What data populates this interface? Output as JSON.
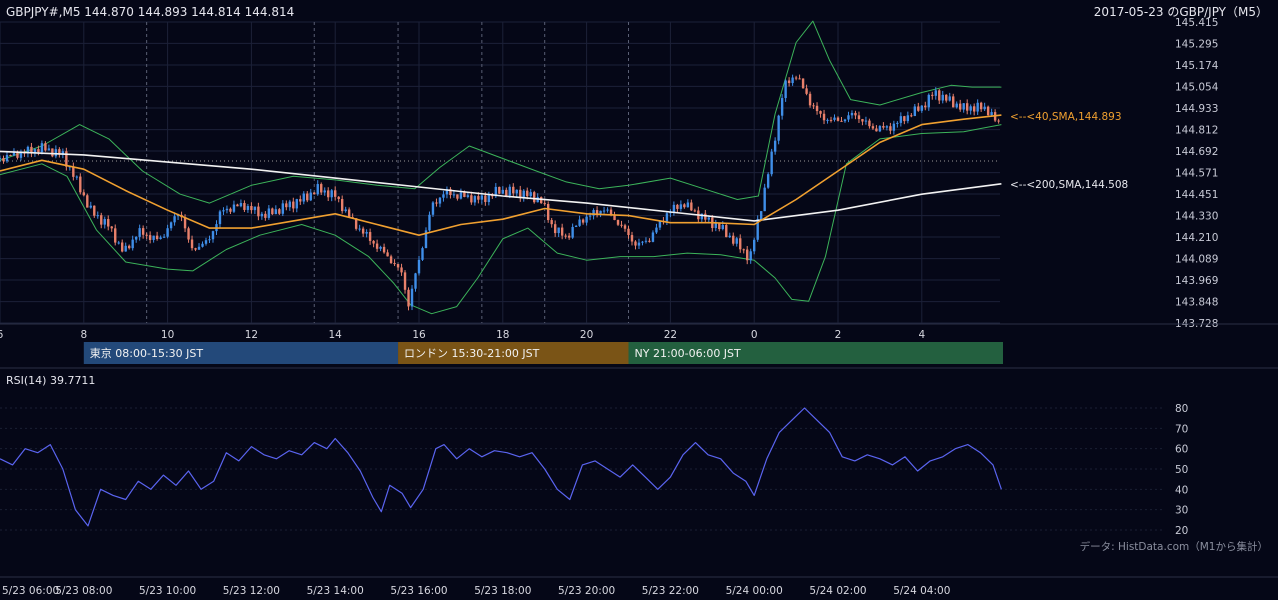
{
  "header": {
    "symbol_line": "GBPJPY#,M5 144.870 144.893 144.814 144.814",
    "chart_title": "2017-05-23 のGBP/JPY（M5）"
  },
  "price_axis": {
    "ticks": [
      "145.415",
      "145.295",
      "145.174",
      "145.054",
      "144.933",
      "144.812",
      "144.692",
      "144.571",
      "144.451",
      "144.330",
      "144.210",
      "144.089",
      "143.969",
      "143.848",
      "143.728"
    ]
  },
  "hour_axis": {
    "ticks": [
      {
        "label": "6",
        "h": 6
      },
      {
        "label": "8",
        "h": 8
      },
      {
        "label": "10",
        "h": 10
      },
      {
        "label": "12",
        "h": 12
      },
      {
        "label": "14",
        "h": 14
      },
      {
        "label": "16",
        "h": 16
      },
      {
        "label": "18",
        "h": 18
      },
      {
        "label": "20",
        "h": 20
      },
      {
        "label": "22",
        "h": 22
      },
      {
        "label": "0",
        "h": 24
      },
      {
        "label": "2",
        "h": 26
      },
      {
        "label": "4",
        "h": 28
      }
    ]
  },
  "sessions": [
    {
      "label": "東京 08:00-15:30 JST",
      "start_h": 8,
      "end_h": 15.5,
      "color": "#23497a"
    },
    {
      "label": "ロンドン 15:30-21:00 JST",
      "start_h": 15.5,
      "end_h": 21,
      "color": "#7a5416"
    },
    {
      "label": "NY 21:00-06:00 JST",
      "start_h": 21,
      "end_h": 30,
      "color": "#23603f"
    }
  ],
  "annotations": {
    "sma40": "<--<40,SMA,144.893",
    "sma200": "<--<200,SMA,144.508"
  },
  "rsi": {
    "label": "RSI(14) 39.7711",
    "ticks": [
      "80",
      "70",
      "60",
      "50",
      "40",
      "30",
      "20"
    ]
  },
  "source_note": "データ: HistData.com（M1から集計）",
  "date_axis": {
    "ticks": [
      {
        "label": "5/23 06:00",
        "h": 6
      },
      {
        "label": "5/23 08:00",
        "h": 8
      },
      {
        "label": "5/23 10:00",
        "h": 10
      },
      {
        "label": "5/23 12:00",
        "h": 12
      },
      {
        "label": "5/23 14:00",
        "h": 14
      },
      {
        "label": "5/23 16:00",
        "h": 16
      },
      {
        "label": "5/23 18:00",
        "h": 18
      },
      {
        "label": "5/23 20:00",
        "h": 20
      },
      {
        "label": "5/23 22:00",
        "h": 22
      },
      {
        "label": "5/24 00:00",
        "h": 24
      },
      {
        "label": "5/24 02:00",
        "h": 26
      },
      {
        "label": "5/24 04:00",
        "h": 28
      }
    ]
  },
  "colors": {
    "background": "#050717",
    "bull": "#3f8ee8",
    "bear": "#e8806b",
    "sma40": "#f0a030",
    "sma200": "#f2f2f2",
    "bollinger": "#3cb35a",
    "rsi_line": "#5a64f0",
    "grid": "#1c2138"
  },
  "chart_data": {
    "type": "candlestick",
    "timeframe": "M5",
    "symbol": "GBPJPY",
    "ylim": [
      143.728,
      145.415
    ],
    "rsi_ylim": [
      20,
      80
    ],
    "close_series": [
      [
        6.0,
        144.65
      ],
      [
        6.5,
        144.68
      ],
      [
        7.0,
        144.71
      ],
      [
        7.5,
        144.67
      ],
      [
        7.9,
        144.49
      ],
      [
        8.15,
        144.36
      ],
      [
        8.6,
        144.27
      ],
      [
        8.95,
        144.12
      ],
      [
        9.3,
        144.24
      ],
      [
        9.8,
        144.19
      ],
      [
        10.3,
        144.36
      ],
      [
        10.55,
        144.14
      ],
      [
        10.95,
        144.18
      ],
      [
        11.3,
        144.36
      ],
      [
        11.8,
        144.39
      ],
      [
        12.3,
        144.33
      ],
      [
        12.8,
        144.38
      ],
      [
        13.2,
        144.42
      ],
      [
        13.6,
        144.48
      ],
      [
        14.0,
        144.44
      ],
      [
        14.4,
        144.3
      ],
      [
        14.9,
        144.18
      ],
      [
        15.3,
        144.09
      ],
      [
        15.6,
        144.0
      ],
      [
        15.75,
        143.83
      ],
      [
        16.0,
        144.08
      ],
      [
        16.3,
        144.38
      ],
      [
        16.6,
        144.46
      ],
      [
        17.0,
        144.44
      ],
      [
        17.5,
        144.42
      ],
      [
        17.9,
        144.47
      ],
      [
        18.4,
        144.46
      ],
      [
        18.9,
        144.42
      ],
      [
        19.2,
        144.26
      ],
      [
        19.5,
        144.21
      ],
      [
        19.9,
        144.31
      ],
      [
        20.4,
        144.37
      ],
      [
        20.8,
        144.28
      ],
      [
        21.2,
        144.16
      ],
      [
        21.5,
        144.2
      ],
      [
        21.9,
        144.34
      ],
      [
        22.3,
        144.4
      ],
      [
        22.7,
        144.33
      ],
      [
        23.2,
        144.26
      ],
      [
        23.6,
        144.17
      ],
      [
        23.9,
        144.09
      ],
      [
        24.2,
        144.42
      ],
      [
        24.45,
        144.7
      ],
      [
        24.7,
        145.05
      ],
      [
        25.0,
        145.12
      ],
      [
        25.3,
        144.98
      ],
      [
        25.6,
        144.88
      ],
      [
        26.0,
        144.86
      ],
      [
        26.4,
        144.9
      ],
      [
        26.8,
        144.82
      ],
      [
        27.2,
        144.82
      ],
      [
        27.6,
        144.88
      ],
      [
        28.0,
        144.94
      ],
      [
        28.3,
        145.02
      ],
      [
        28.6,
        144.98
      ],
      [
        29.0,
        144.93
      ],
      [
        29.3,
        144.94
      ],
      [
        29.6,
        144.92
      ],
      [
        29.9,
        144.814
      ]
    ],
    "sma40": [
      [
        6.0,
        144.58
      ],
      [
        7.0,
        144.64
      ],
      [
        8.0,
        144.59
      ],
      [
        9.0,
        144.47
      ],
      [
        10.0,
        144.36
      ],
      [
        11.0,
        144.26
      ],
      [
        12.0,
        144.26
      ],
      [
        13.0,
        144.3
      ],
      [
        14.0,
        144.34
      ],
      [
        15.0,
        144.28
      ],
      [
        16.0,
        144.22
      ],
      [
        17.0,
        144.28
      ],
      [
        18.0,
        144.31
      ],
      [
        19.0,
        144.37
      ],
      [
        20.0,
        144.34
      ],
      [
        21.0,
        144.33
      ],
      [
        22.0,
        144.29
      ],
      [
        23.0,
        144.29
      ],
      [
        24.0,
        144.28
      ],
      [
        25.0,
        144.42
      ],
      [
        26.0,
        144.58
      ],
      [
        27.0,
        144.74
      ],
      [
        28.0,
        144.84
      ],
      [
        29.0,
        144.87
      ],
      [
        29.9,
        144.893
      ]
    ],
    "sma200": [
      [
        6.0,
        144.69
      ],
      [
        8.0,
        144.67
      ],
      [
        10.0,
        144.63
      ],
      [
        12.0,
        144.59
      ],
      [
        14.0,
        144.54
      ],
      [
        16.0,
        144.49
      ],
      [
        18.0,
        144.44
      ],
      [
        20.0,
        144.4
      ],
      [
        22.0,
        144.35
      ],
      [
        24.0,
        144.3
      ],
      [
        26.0,
        144.36
      ],
      [
        28.0,
        144.45
      ],
      [
        29.9,
        144.508
      ]
    ],
    "bollinger_upper": [
      [
        6.0,
        144.64
      ],
      [
        7.0,
        144.72
      ],
      [
        7.9,
        144.84
      ],
      [
        8.6,
        144.76
      ],
      [
        9.4,
        144.58
      ],
      [
        10.3,
        144.45
      ],
      [
        11.0,
        144.4
      ],
      [
        12.0,
        144.5
      ],
      [
        13.0,
        144.55
      ],
      [
        14.0,
        144.53
      ],
      [
        15.0,
        144.5
      ],
      [
        15.9,
        144.48
      ],
      [
        16.5,
        144.6
      ],
      [
        17.2,
        144.72
      ],
      [
        18.0,
        144.65
      ],
      [
        18.8,
        144.58
      ],
      [
        19.5,
        144.52
      ],
      [
        20.3,
        144.48
      ],
      [
        21.0,
        144.5
      ],
      [
        22.0,
        144.54
      ],
      [
        22.8,
        144.48
      ],
      [
        23.6,
        144.42
      ],
      [
        24.1,
        144.44
      ],
      [
        24.5,
        144.9
      ],
      [
        25.0,
        145.3
      ],
      [
        25.4,
        145.42
      ],
      [
        25.8,
        145.2
      ],
      [
        26.3,
        144.98
      ],
      [
        27.0,
        144.95
      ],
      [
        28.0,
        145.02
      ],
      [
        28.7,
        145.06
      ],
      [
        29.2,
        145.05
      ],
      [
        29.9,
        145.05
      ]
    ],
    "bollinger_lower": [
      [
        6.0,
        144.56
      ],
      [
        7.0,
        144.62
      ],
      [
        7.6,
        144.55
      ],
      [
        8.3,
        144.25
      ],
      [
        9.0,
        144.07
      ],
      [
        10.0,
        144.03
      ],
      [
        10.6,
        144.02
      ],
      [
        11.4,
        144.14
      ],
      [
        12.2,
        144.22
      ],
      [
        13.2,
        144.28
      ],
      [
        14.0,
        144.22
      ],
      [
        14.8,
        144.1
      ],
      [
        15.4,
        143.95
      ],
      [
        15.8,
        143.83
      ],
      [
        16.3,
        143.78
      ],
      [
        16.9,
        143.82
      ],
      [
        17.4,
        143.98
      ],
      [
        18.0,
        144.2
      ],
      [
        18.6,
        144.26
      ],
      [
        19.3,
        144.12
      ],
      [
        20.0,
        144.08
      ],
      [
        20.8,
        144.1
      ],
      [
        21.6,
        144.1
      ],
      [
        22.4,
        144.12
      ],
      [
        23.2,
        144.11
      ],
      [
        24.0,
        144.08
      ],
      [
        24.5,
        143.98
      ],
      [
        24.9,
        143.86
      ],
      [
        25.3,
        143.85
      ],
      [
        25.7,
        144.1
      ],
      [
        26.2,
        144.62
      ],
      [
        27.0,
        144.76
      ],
      [
        28.0,
        144.79
      ],
      [
        29.0,
        144.8
      ],
      [
        29.9,
        144.84
      ]
    ],
    "rsi14": [
      [
        6.0,
        55
      ],
      [
        6.3,
        52
      ],
      [
        6.6,
        60
      ],
      [
        6.9,
        58
      ],
      [
        7.2,
        62
      ],
      [
        7.5,
        50
      ],
      [
        7.8,
        30
      ],
      [
        8.1,
        22
      ],
      [
        8.4,
        40
      ],
      [
        8.7,
        37
      ],
      [
        9.0,
        35
      ],
      [
        9.3,
        44
      ],
      [
        9.6,
        40
      ],
      [
        9.9,
        47
      ],
      [
        10.2,
        42
      ],
      [
        10.5,
        49
      ],
      [
        10.8,
        40
      ],
      [
        11.1,
        44
      ],
      [
        11.4,
        58
      ],
      [
        11.7,
        54
      ],
      [
        12.0,
        61
      ],
      [
        12.3,
        57
      ],
      [
        12.6,
        55
      ],
      [
        12.9,
        59
      ],
      [
        13.2,
        57
      ],
      [
        13.5,
        63
      ],
      [
        13.8,
        60
      ],
      [
        14.0,
        65
      ],
      [
        14.3,
        58
      ],
      [
        14.6,
        49
      ],
      [
        14.9,
        36
      ],
      [
        15.1,
        29
      ],
      [
        15.3,
        42
      ],
      [
        15.6,
        38
      ],
      [
        15.8,
        31
      ],
      [
        16.1,
        40
      ],
      [
        16.4,
        60
      ],
      [
        16.6,
        62
      ],
      [
        16.9,
        55
      ],
      [
        17.2,
        60
      ],
      [
        17.5,
        56
      ],
      [
        17.8,
        59
      ],
      [
        18.1,
        58
      ],
      [
        18.4,
        56
      ],
      [
        18.7,
        58
      ],
      [
        19.0,
        50
      ],
      [
        19.3,
        40
      ],
      [
        19.6,
        35
      ],
      [
        19.9,
        52
      ],
      [
        20.2,
        54
      ],
      [
        20.5,
        50
      ],
      [
        20.8,
        46
      ],
      [
        21.1,
        52
      ],
      [
        21.4,
        46
      ],
      [
        21.7,
        40
      ],
      [
        22.0,
        46
      ],
      [
        22.3,
        57
      ],
      [
        22.6,
        63
      ],
      [
        22.9,
        57
      ],
      [
        23.2,
        55
      ],
      [
        23.5,
        48
      ],
      [
        23.8,
        44
      ],
      [
        24.0,
        37
      ],
      [
        24.3,
        55
      ],
      [
        24.6,
        68
      ],
      [
        24.9,
        74
      ],
      [
        25.2,
        80
      ],
      [
        25.5,
        74
      ],
      [
        25.8,
        68
      ],
      [
        26.1,
        56
      ],
      [
        26.4,
        54
      ],
      [
        26.7,
        57
      ],
      [
        27.0,
        55
      ],
      [
        27.3,
        52
      ],
      [
        27.6,
        56
      ],
      [
        27.9,
        49
      ],
      [
        28.2,
        54
      ],
      [
        28.5,
        56
      ],
      [
        28.8,
        60
      ],
      [
        29.1,
        62
      ],
      [
        29.4,
        58
      ],
      [
        29.7,
        52
      ],
      [
        29.9,
        40
      ]
    ]
  }
}
